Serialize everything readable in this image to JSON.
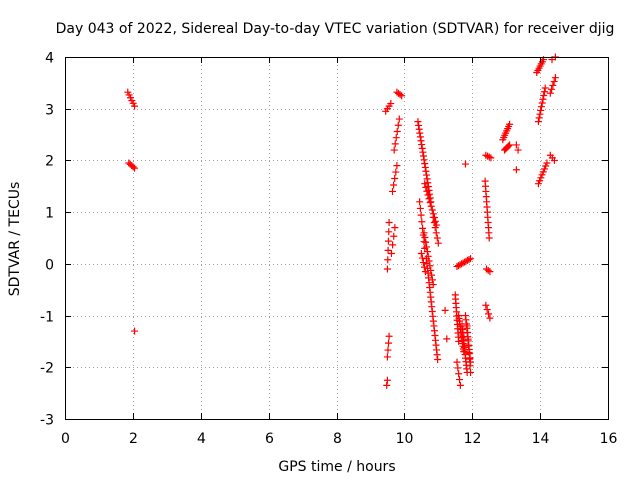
{
  "chart_data": {
    "type": "scatter",
    "title": "Day 043 of 2022, Sidereal Day-to-day VTEC variation (SDTVAR) for receiver djig",
    "xlabel": "GPS time / hours",
    "ylabel": "SDTVAR / TECUs",
    "xlim": [
      0,
      16
    ],
    "ylim": [
      -3,
      4
    ],
    "xticks": [
      "0",
      "2",
      "4",
      "6",
      "8",
      "10",
      "12",
      "14",
      "16"
    ],
    "yticks": [
      "-3",
      "-2",
      "-1",
      "0",
      "1",
      "2",
      "3",
      "4"
    ],
    "grid": true,
    "marker": "plus",
    "series_color": "#ff0000",
    "segments": [
      [
        1.85,
        3.32,
        2.05,
        3.05,
        6
      ],
      [
        1.88,
        1.95,
        2.05,
        1.85,
        5
      ],
      [
        9.45,
        2.95,
        9.6,
        3.1,
        4
      ],
      [
        9.5,
        -0.1,
        9.55,
        0.8,
        6
      ],
      [
        9.5,
        -1.8,
        9.55,
        -1.4,
        4
      ],
      [
        9.62,
        0.2,
        9.72,
        0.7,
        4
      ],
      [
        9.65,
        1.4,
        9.78,
        1.9,
        5
      ],
      [
        9.7,
        2.2,
        9.85,
        2.8,
        6
      ],
      [
        9.78,
        3.32,
        9.92,
        3.25,
        4
      ],
      [
        10.4,
        2.75,
        10.78,
        1.2,
        22
      ],
      [
        10.6,
        1.55,
        10.95,
        0.75,
        12
      ],
      [
        10.45,
        1.2,
        10.6,
        0.3,
        8
      ],
      [
        10.58,
        0.6,
        10.85,
        -0.4,
        12
      ],
      [
        10.5,
        0.2,
        10.62,
        -0.15,
        5
      ],
      [
        10.65,
        0.1,
        10.98,
        -1.85,
        22
      ],
      [
        10.85,
        0.9,
        11.0,
        0.4,
        6
      ],
      [
        11.55,
        -0.05,
        11.95,
        0.1,
        10
      ],
      [
        11.5,
        -0.6,
        11.6,
        -1.5,
        12
      ],
      [
        11.55,
        -1.9,
        11.65,
        -2.35,
        5
      ],
      [
        11.6,
        -1.0,
        11.75,
        -1.7,
        14
      ],
      [
        11.7,
        -1.2,
        11.85,
        -2.1,
        14
      ],
      [
        11.8,
        -1.0,
        11.95,
        -1.9,
        12
      ],
      [
        11.85,
        -1.2,
        11.95,
        -2.1,
        8
      ],
      [
        12.38,
        1.6,
        12.5,
        0.5,
        12
      ],
      [
        12.4,
        2.1,
        12.55,
        2.05,
        4
      ],
      [
        12.4,
        -0.8,
        12.52,
        -1.05,
        4
      ],
      [
        12.42,
        -0.1,
        12.52,
        -0.15,
        3
      ],
      [
        12.9,
        2.4,
        13.1,
        2.7,
        8
      ],
      [
        12.95,
        2.2,
        13.1,
        2.3,
        6
      ],
      [
        13.3,
        2.3,
        13.35,
        2.2,
        2
      ],
      [
        13.9,
        3.7,
        14.1,
        3.95,
        7
      ],
      [
        13.95,
        2.75,
        14.15,
        3.4,
        10
      ],
      [
        13.95,
        1.55,
        14.2,
        1.95,
        8
      ],
      [
        14.3,
        2.1,
        14.42,
        2.0,
        3
      ],
      [
        14.3,
        3.3,
        14.45,
        3.6,
        5
      ],
      [
        14.35,
        3.95,
        14.45,
        4.0,
        2
      ]
    ],
    "points": [
      [
        2.05,
        -1.3
      ],
      [
        11.8,
        1.93
      ],
      [
        13.3,
        1.82
      ],
      [
        11.2,
        -0.9
      ],
      [
        11.25,
        -1.45
      ],
      [
        9.48,
        -2.35
      ],
      [
        9.5,
        -2.25
      ]
    ]
  }
}
